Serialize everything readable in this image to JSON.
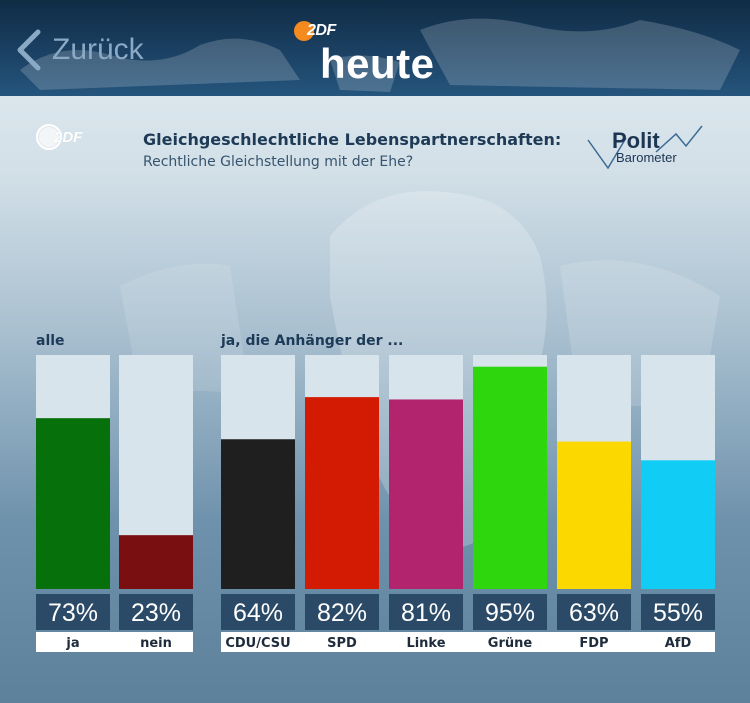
{
  "header": {
    "back_label": "Zurück",
    "brand_logo": "2DF",
    "brand_title": "heute",
    "back_icon": "chevron-left-icon"
  },
  "panel": {
    "zdf_logo": "2DF",
    "title": "Gleichgeschlechtliche Lebenspartnerschaften:",
    "subtitle": "Rechtliche Gleichstellung mit der Ehe?",
    "polit_barometer": {
      "line1": "Polit",
      "line2": "Barometer"
    },
    "group_all": "alle",
    "group_supporters": "ja, die Anhänger der ..."
  },
  "chart_data": {
    "type": "bar",
    "ylim": [
      0,
      100
    ],
    "categories": [
      "ja",
      "nein",
      "CDU/CSU",
      "SPD",
      "Linke",
      "Grüne",
      "FDP",
      "AfD"
    ],
    "values": [
      73,
      23,
      64,
      82,
      81,
      95,
      63,
      55
    ],
    "value_labels": [
      "73%",
      "23%",
      "64%",
      "82%",
      "81%",
      "95%",
      "63%",
      "55%"
    ],
    "colors": [
      "#06700a",
      "#7a0f12",
      "#1f1f1f",
      "#d31a02",
      "#b2246e",
      "#2ed60d",
      "#fbd800",
      "#11cdf6"
    ],
    "track_color": "#d8e4ec",
    "label_box_color": "#2b4a67",
    "groups": [
      "alle",
      "alle",
      "ja, die Anhänger der ...",
      "ja, die Anhänger der ...",
      "ja, die Anhänger der ...",
      "ja, die Anhänger der ...",
      "ja, die Anhänger der ...",
      "ja, die Anhänger der ..."
    ]
  }
}
